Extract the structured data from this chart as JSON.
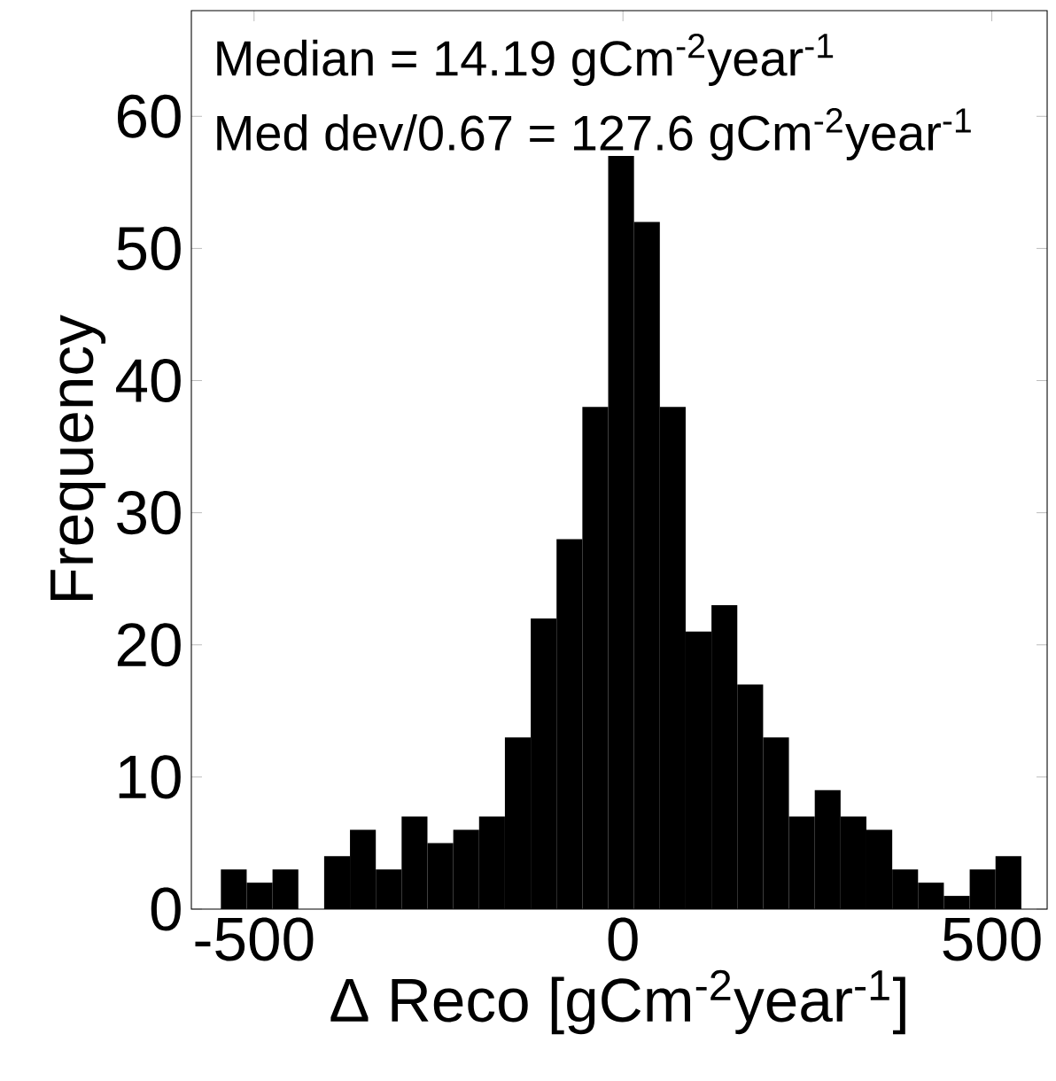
{
  "chart_data": {
    "type": "histogram",
    "xlabel": "Δ Reco [gCm$^{-2}$year$^{-1}$]",
    "ylabel": "Frequency",
    "annotations": [
      "Median       = 14.19 gCm$^{-2}$year$^{-1}$",
      "Med dev/0.67 = 127.6 gCm$^{-2}$year$^{-1}$"
    ],
    "bins": [
      -545,
      -510,
      -475,
      -440,
      -405,
      -370,
      -335,
      -300,
      -265,
      -230,
      -195,
      -160,
      -125,
      -90,
      -55,
      -20,
      15,
      50,
      85,
      120,
      155,
      190,
      225,
      260,
      295,
      330,
      365,
      400,
      435,
      470,
      505,
      540
    ],
    "values": [
      3,
      2,
      3,
      0,
      4,
      6,
      3,
      7,
      5,
      6,
      7,
      13,
      22,
      28,
      38,
      57,
      52,
      38,
      21,
      23,
      17,
      13,
      7,
      9,
      7,
      6,
      3,
      2,
      1,
      3,
      4
    ],
    "color": "#000000",
    "xlim": [
      -585,
      575
    ],
    "ylim": [
      0,
      68
    ],
    "xticks": [
      -500,
      0,
      500
    ],
    "yticks": [
      0,
      10,
      20,
      30,
      40,
      50,
      60
    ],
    "grid": false
  }
}
